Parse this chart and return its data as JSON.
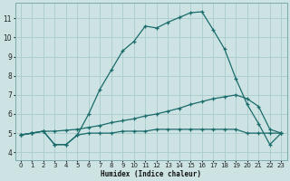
{
  "bg_color": "#cde3e3",
  "grid_color": "#aacccc",
  "line_color": "#1a6b6b",
  "xlabel": "Humidex (Indice chaleur)",
  "ylabel_ticks": [
    4,
    5,
    6,
    7,
    8,
    9,
    10,
    11
  ],
  "xlim": [
    -0.5,
    23.5
  ],
  "ylim": [
    3.6,
    11.8
  ],
  "xticks": [
    0,
    1,
    2,
    3,
    4,
    5,
    6,
    7,
    8,
    9,
    10,
    11,
    12,
    13,
    14,
    15,
    16,
    17,
    18,
    19,
    20,
    21,
    22,
    23
  ],
  "curve_flat_x": [
    0,
    1,
    2,
    3,
    4,
    5,
    6,
    7,
    8,
    9,
    10,
    11,
    12,
    13,
    14,
    15,
    16,
    17,
    18,
    19,
    20,
    21,
    22,
    23
  ],
  "curve_flat_y": [
    4.9,
    5.0,
    5.1,
    4.4,
    4.4,
    4.9,
    5.0,
    5.0,
    5.0,
    5.1,
    5.1,
    5.1,
    5.2,
    5.2,
    5.2,
    5.2,
    5.2,
    5.2,
    5.2,
    5.2,
    5.0,
    5.0,
    5.0,
    5.0
  ],
  "curve_mid_x": [
    0,
    1,
    2,
    3,
    4,
    5,
    6,
    7,
    8,
    9,
    10,
    11,
    12,
    13,
    14,
    15,
    16,
    17,
    18,
    19,
    20,
    21,
    22,
    23
  ],
  "curve_mid_y": [
    4.9,
    5.0,
    5.1,
    5.1,
    5.15,
    5.2,
    5.3,
    5.4,
    5.55,
    5.65,
    5.75,
    5.9,
    6.0,
    6.15,
    6.3,
    6.5,
    6.65,
    6.8,
    6.9,
    7.0,
    6.8,
    6.4,
    5.2,
    5.0
  ],
  "curve_main_x": [
    0,
    1,
    2,
    3,
    4,
    5,
    6,
    7,
    8,
    9,
    10,
    11,
    12,
    13,
    14,
    15,
    16,
    17,
    18,
    19,
    20,
    21,
    22,
    23
  ],
  "curve_main_y": [
    4.9,
    5.0,
    5.1,
    4.4,
    4.4,
    4.9,
    6.0,
    7.3,
    8.3,
    9.3,
    9.8,
    10.6,
    10.5,
    10.8,
    11.05,
    11.3,
    11.35,
    10.4,
    9.4,
    7.85,
    6.5,
    5.5,
    4.4,
    5.0
  ]
}
